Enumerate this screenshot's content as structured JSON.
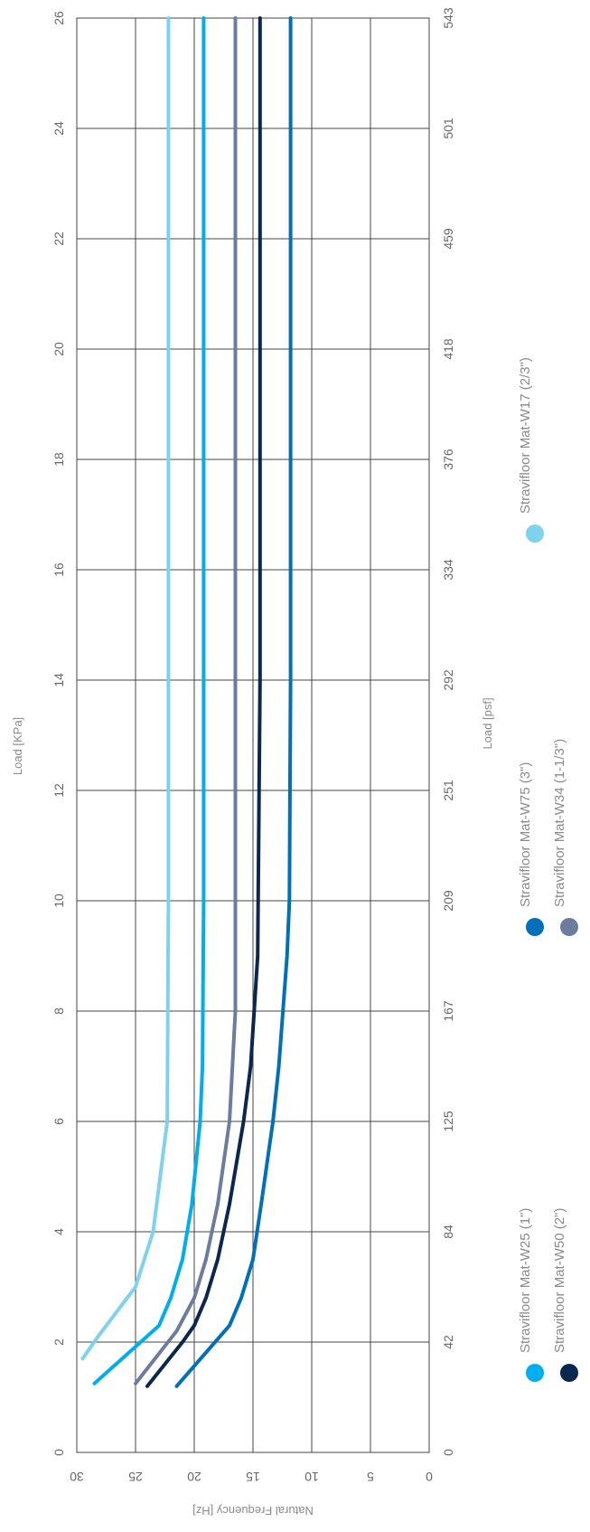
{
  "chart_data": {
    "type": "line",
    "title": "",
    "orientation": "rotated-90",
    "x_primary": {
      "label": "Load [KPa]",
      "range": [
        0,
        26
      ],
      "ticks": [
        "0",
        "2",
        "4",
        "6",
        "8",
        "10",
        "12",
        "14",
        "16",
        "18",
        "20",
        "22",
        "24",
        "26"
      ]
    },
    "x_secondary": {
      "label": "Load [psf]",
      "ticks": [
        "0",
        "42",
        "84",
        "125",
        "167",
        "209",
        "251",
        "292",
        "334",
        "376",
        "418",
        "459",
        "501",
        "543"
      ]
    },
    "y": {
      "label": "Natural Frequency [Hz]",
      "range": [
        0,
        30
      ],
      "ticks": [
        "0",
        "5",
        "10",
        "15",
        "20",
        "25",
        "30"
      ]
    },
    "grid": true,
    "legend_position": "bottom",
    "series": [
      {
        "name": "Stravifloor Mat-W25 (1\")",
        "color": "#00aeef",
        "points": [
          [
            1.25,
            28.5
          ],
          [
            2.3,
            23
          ],
          [
            2.8,
            22
          ],
          [
            3.5,
            21
          ],
          [
            4.5,
            20.2
          ],
          [
            6,
            19.5
          ],
          [
            7,
            19.3
          ],
          [
            10,
            19.2
          ],
          [
            26,
            19.2
          ]
        ]
      },
      {
        "name": "Stravifloor Mat-W50 (2\")",
        "color": "#0a2750",
        "points": [
          [
            1.2,
            24
          ],
          [
            2,
            21
          ],
          [
            2.3,
            20
          ],
          [
            2.8,
            19
          ],
          [
            3.5,
            18
          ],
          [
            4.5,
            17
          ],
          [
            6,
            15.8
          ],
          [
            7,
            15.2
          ],
          [
            9,
            14.6
          ],
          [
            14,
            14.4
          ],
          [
            26,
            14.4
          ]
        ]
      },
      {
        "name": "Stravifloor Mat-W75 (3\")",
        "color": "#0070ba",
        "points": [
          [
            1.2,
            21.5
          ],
          [
            2.3,
            17
          ],
          [
            2.8,
            16
          ],
          [
            3.5,
            15
          ],
          [
            4.5,
            14.3
          ],
          [
            6,
            13.3
          ],
          [
            7,
            12.8
          ],
          [
            9,
            12.1
          ],
          [
            10,
            11.9
          ],
          [
            14,
            11.8
          ],
          [
            26,
            11.8
          ]
        ]
      },
      {
        "name": "Stravifloor Mat-W34 (1-1/3\")",
        "color": "#6b7c9e",
        "points": [
          [
            1.25,
            25
          ],
          [
            2.2,
            21.5
          ],
          [
            2.8,
            20
          ],
          [
            3.5,
            19
          ],
          [
            4.5,
            18
          ],
          [
            6,
            17
          ],
          [
            8,
            16.5
          ],
          [
            26,
            16.5
          ]
        ]
      },
      {
        "name": "Stravifloor Mat-W17 (2/3\")",
        "color": "#7fd1f0",
        "points": [
          [
            1.7,
            29.5
          ],
          [
            2.1,
            28.2
          ],
          [
            3,
            25
          ],
          [
            4,
            23.5
          ],
          [
            6,
            22.3
          ],
          [
            10,
            22.2
          ],
          [
            26,
            22.2
          ]
        ]
      }
    ]
  }
}
